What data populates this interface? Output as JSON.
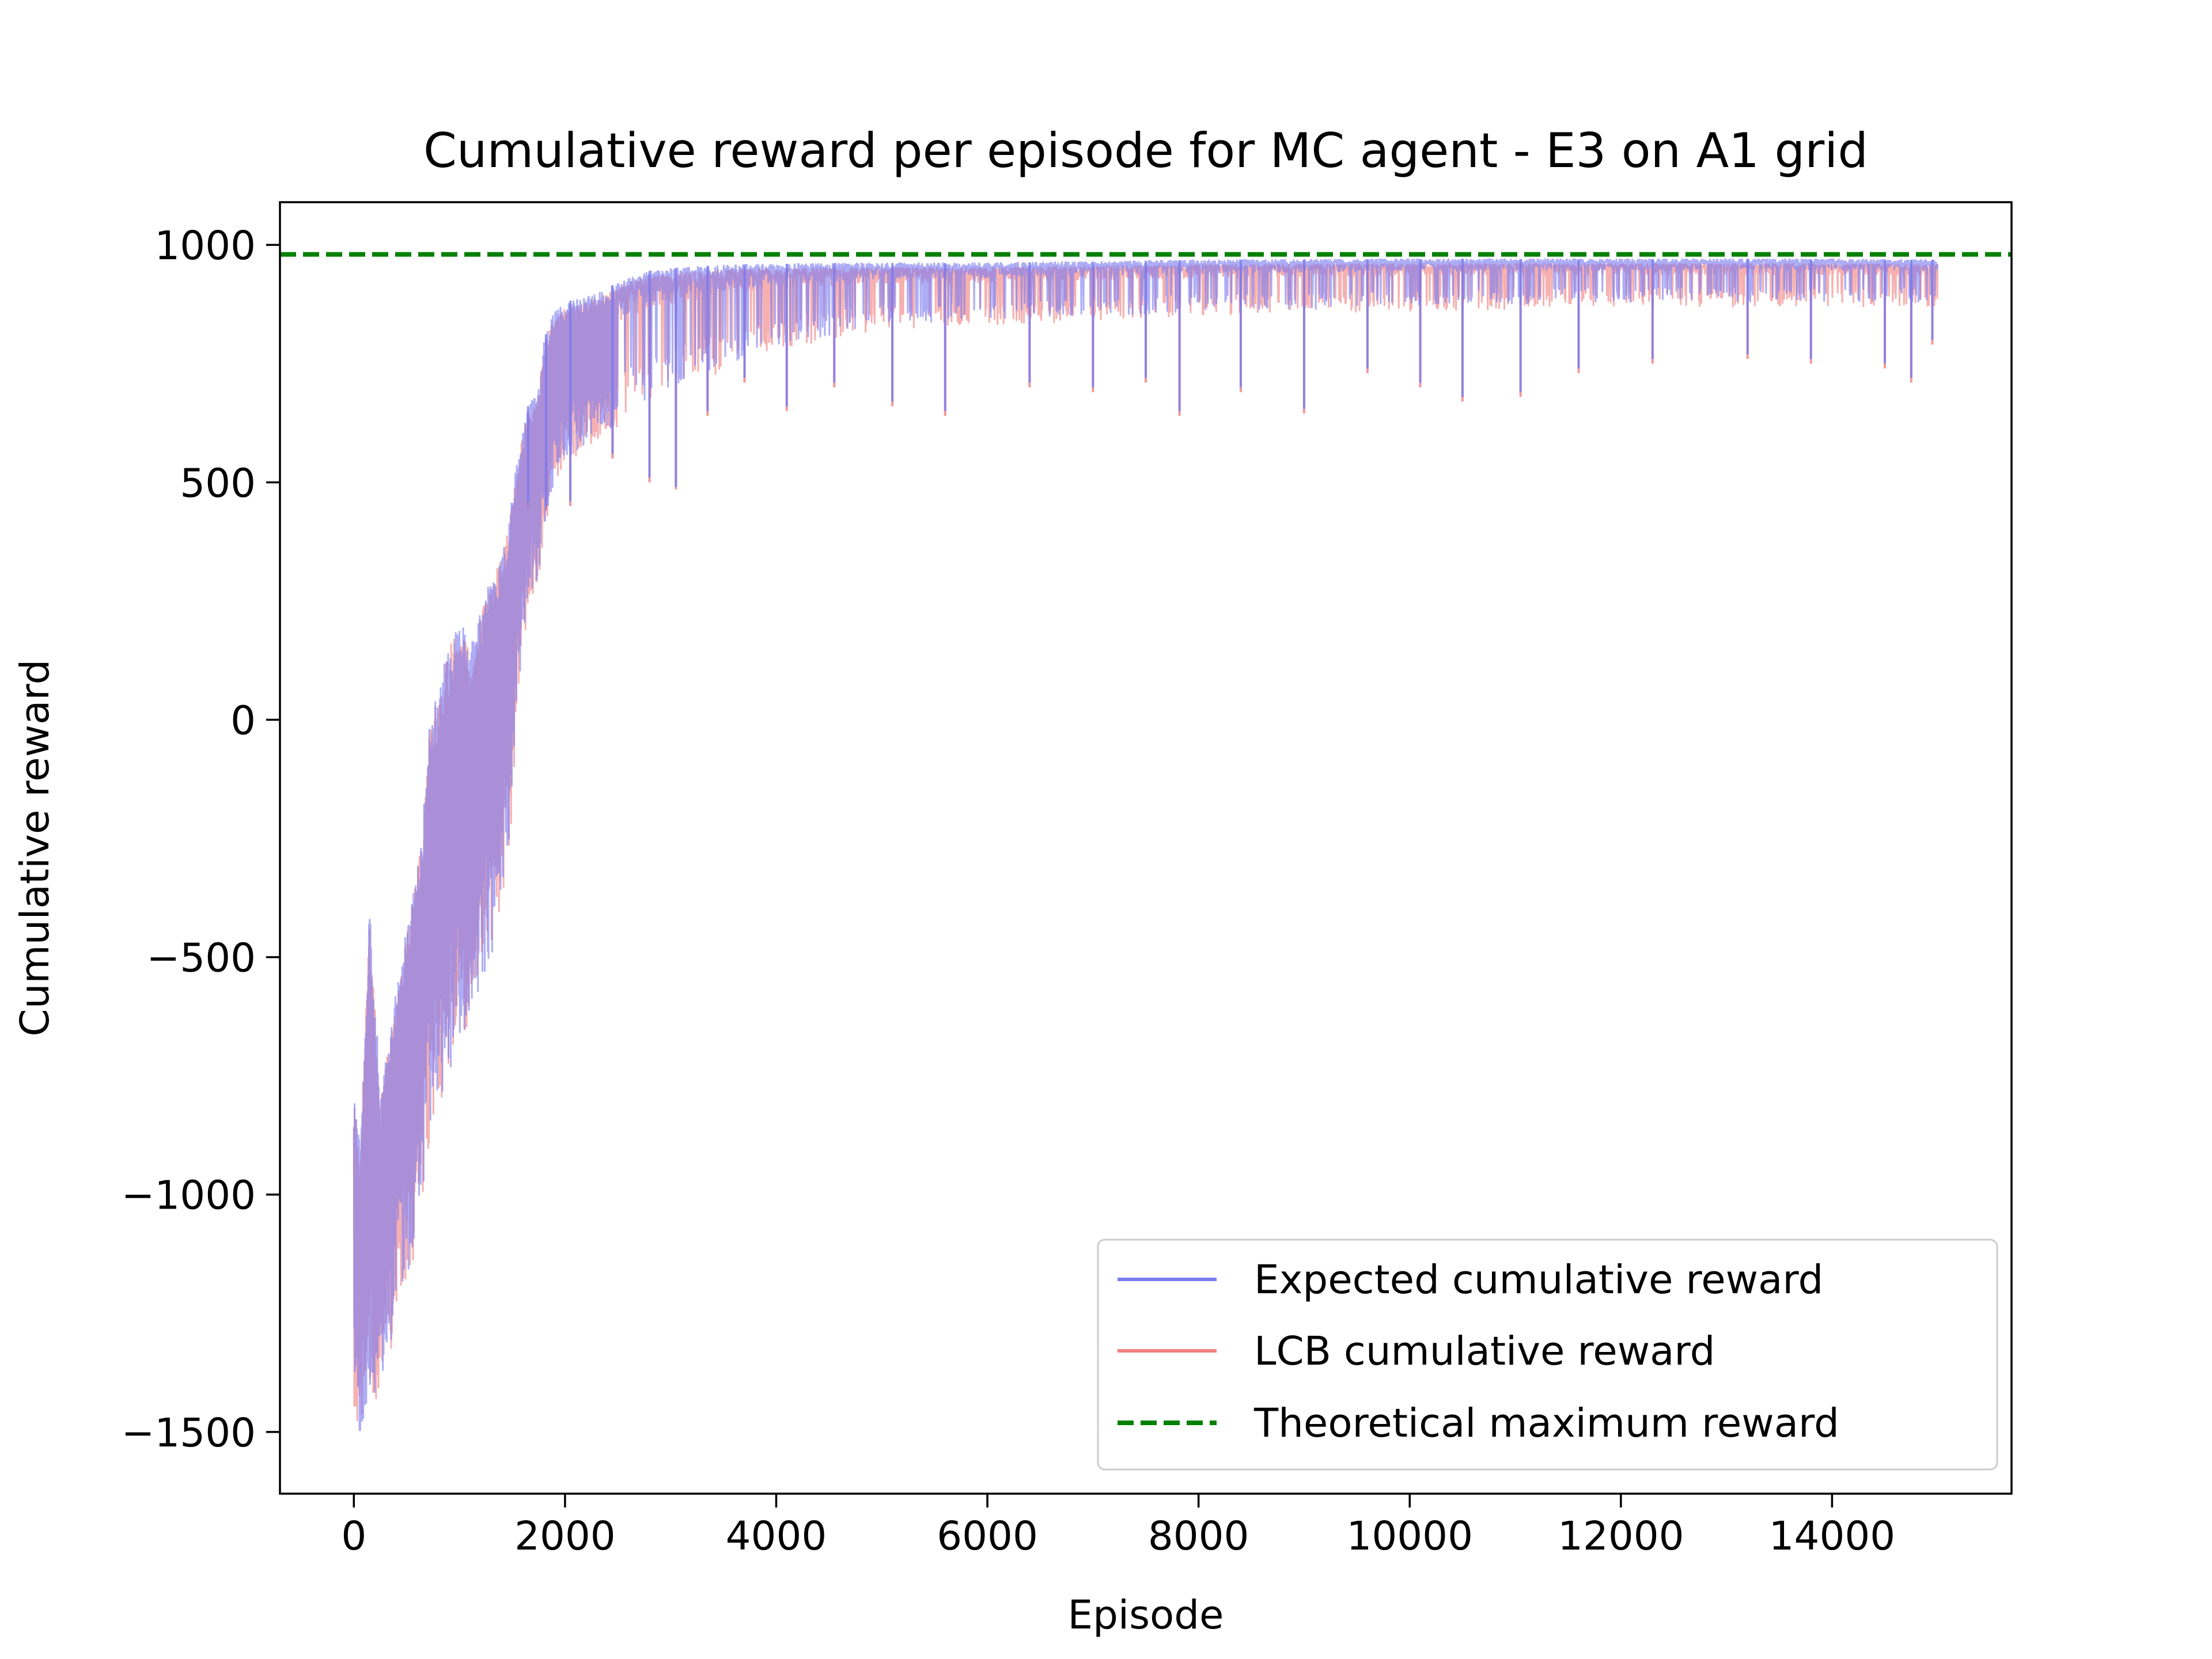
{
  "chart_data": {
    "type": "line",
    "title": "Cumulative reward per episode for MC agent - E3 on A1 grid",
    "xlabel": "Episode",
    "ylabel": "Cumulative reward",
    "xlim": [
      -700,
      15700
    ],
    "ylim": [
      -1630,
      1090
    ],
    "xticks": [
      0,
      2000,
      4000,
      6000,
      8000,
      10000,
      12000,
      14000
    ],
    "yticks": [
      -1500,
      -1000,
      -500,
      0,
      500,
      1000
    ],
    "grid": false,
    "legend_position": "lower-right",
    "series": [
      {
        "name": "Expected cumulative reward",
        "color": "#7b7bf0",
        "style": "solid",
        "upper_envelope": [
          [
            0,
            -780
          ],
          [
            60,
            -900
          ],
          [
            150,
            -380
          ],
          [
            250,
            -780
          ],
          [
            350,
            -640
          ],
          [
            450,
            -500
          ],
          [
            550,
            -380
          ],
          [
            650,
            -230
          ],
          [
            700,
            -20
          ],
          [
            800,
            60
          ],
          [
            900,
            160
          ],
          [
            1000,
            220
          ],
          [
            1100,
            150
          ],
          [
            1200,
            230
          ],
          [
            1300,
            300
          ],
          [
            1400,
            350
          ],
          [
            1500,
            470
          ],
          [
            1550,
            560
          ],
          [
            1650,
            660
          ],
          [
            1750,
            700
          ],
          [
            1800,
            800
          ],
          [
            1900,
            860
          ],
          [
            2000,
            880
          ],
          [
            2200,
            890
          ],
          [
            2400,
            910
          ],
          [
            2600,
            930
          ],
          [
            2800,
            945
          ],
          [
            3000,
            950
          ],
          [
            3500,
            958
          ],
          [
            4000,
            960
          ],
          [
            5000,
            962
          ],
          [
            6000,
            962
          ],
          [
            7000,
            965
          ],
          [
            8000,
            968
          ],
          [
            10000,
            970
          ],
          [
            12000,
            970
          ],
          [
            14000,
            970
          ],
          [
            15000,
            968
          ]
        ],
        "lower_envelope": [
          [
            0,
            -1470
          ],
          [
            60,
            -1500
          ],
          [
            150,
            -1420
          ],
          [
            250,
            -1420
          ],
          [
            350,
            -1320
          ],
          [
            450,
            -1220
          ],
          [
            550,
            -1150
          ],
          [
            650,
            -1000
          ],
          [
            700,
            -900
          ],
          [
            800,
            -820
          ],
          [
            900,
            -750
          ],
          [
            1000,
            -680
          ],
          [
            1100,
            -620
          ],
          [
            1200,
            -580
          ],
          [
            1300,
            -500
          ],
          [
            1400,
            -400
          ],
          [
            1500,
            -200
          ],
          [
            1550,
            50
          ],
          [
            1650,
            250
          ],
          [
            1750,
            300
          ],
          [
            1800,
            400
          ],
          [
            1900,
            500
          ],
          [
            2000,
            550
          ],
          [
            2200,
            580
          ],
          [
            2400,
            610
          ],
          [
            2600,
            640
          ],
          [
            2800,
            670
          ],
          [
            3000,
            700
          ],
          [
            3500,
            740
          ],
          [
            4000,
            790
          ],
          [
            5000,
            830
          ],
          [
            6000,
            840
          ],
          [
            7000,
            850
          ],
          [
            8000,
            860
          ],
          [
            10000,
            870
          ],
          [
            12000,
            880
          ],
          [
            14000,
            880
          ],
          [
            15000,
            880
          ]
        ],
        "dips": [
          [
            1650,
            460
          ],
          [
            1820,
            450
          ],
          [
            2050,
            460
          ],
          [
            2450,
            560
          ],
          [
            2800,
            510
          ],
          [
            3050,
            490
          ],
          [
            3350,
            650
          ],
          [
            3700,
            720
          ],
          [
            4100,
            660
          ],
          [
            4550,
            710
          ],
          [
            5100,
            670
          ],
          [
            5600,
            650
          ],
          [
            6400,
            710
          ],
          [
            7000,
            700
          ],
          [
            7500,
            720
          ],
          [
            7820,
            650
          ],
          [
            8400,
            700
          ],
          [
            9000,
            655
          ],
          [
            9600,
            740
          ],
          [
            10100,
            710
          ],
          [
            10500,
            680
          ],
          [
            11050,
            690
          ],
          [
            11600,
            740
          ],
          [
            12300,
            760
          ],
          [
            13200,
            770
          ],
          [
            13800,
            760
          ],
          [
            14500,
            750
          ],
          [
            14750,
            720
          ],
          [
            14950,
            800
          ]
        ]
      },
      {
        "name": "LCB cumulative reward",
        "color": "#f08080",
        "style": "solid",
        "upper_envelope": [
          [
            0,
            -790
          ],
          [
            60,
            -910
          ],
          [
            150,
            -390
          ],
          [
            250,
            -790
          ],
          [
            350,
            -650
          ],
          [
            450,
            -510
          ],
          [
            550,
            -390
          ],
          [
            650,
            -240
          ],
          [
            700,
            -30
          ],
          [
            800,
            50
          ],
          [
            900,
            150
          ],
          [
            1000,
            210
          ],
          [
            1100,
            140
          ],
          [
            1200,
            220
          ],
          [
            1300,
            290
          ],
          [
            1400,
            340
          ],
          [
            1500,
            460
          ],
          [
            1550,
            550
          ],
          [
            1650,
            650
          ],
          [
            1750,
            690
          ],
          [
            1800,
            790
          ],
          [
            1900,
            850
          ],
          [
            2000,
            870
          ],
          [
            2200,
            880
          ],
          [
            2400,
            900
          ],
          [
            2600,
            920
          ],
          [
            2800,
            935
          ],
          [
            3000,
            940
          ],
          [
            3500,
            948
          ],
          [
            4000,
            950
          ],
          [
            5000,
            952
          ],
          [
            6000,
            952
          ],
          [
            7000,
            955
          ],
          [
            8000,
            958
          ],
          [
            10000,
            960
          ],
          [
            12000,
            960
          ],
          [
            14000,
            960
          ],
          [
            15000,
            958
          ]
        ],
        "lower_envelope": [
          [
            0,
            -1480
          ],
          [
            60,
            -1510
          ],
          [
            150,
            -1430
          ],
          [
            250,
            -1430
          ],
          [
            350,
            -1330
          ],
          [
            450,
            -1230
          ],
          [
            550,
            -1160
          ],
          [
            650,
            -1010
          ],
          [
            700,
            -910
          ],
          [
            800,
            -830
          ],
          [
            900,
            -760
          ],
          [
            1000,
            -690
          ],
          [
            1100,
            -630
          ],
          [
            1200,
            -590
          ],
          [
            1300,
            -510
          ],
          [
            1400,
            -410
          ],
          [
            1500,
            -210
          ],
          [
            1550,
            40
          ],
          [
            1650,
            240
          ],
          [
            1750,
            290
          ],
          [
            1800,
            390
          ],
          [
            1900,
            490
          ],
          [
            2000,
            540
          ],
          [
            2200,
            570
          ],
          [
            2400,
            600
          ],
          [
            2600,
            630
          ],
          [
            2800,
            660
          ],
          [
            3000,
            690
          ],
          [
            3500,
            730
          ],
          [
            4000,
            780
          ],
          [
            5000,
            820
          ],
          [
            6000,
            830
          ],
          [
            7000,
            840
          ],
          [
            8000,
            850
          ],
          [
            10000,
            860
          ],
          [
            12000,
            870
          ],
          [
            14000,
            870
          ],
          [
            15000,
            870
          ]
        ],
        "dips": [
          [
            1650,
            445
          ],
          [
            1820,
            440
          ],
          [
            2050,
            450
          ],
          [
            2450,
            550
          ],
          [
            2800,
            500
          ],
          [
            3050,
            485
          ],
          [
            3350,
            640
          ],
          [
            3700,
            710
          ],
          [
            4100,
            650
          ],
          [
            4550,
            700
          ],
          [
            5100,
            660
          ],
          [
            5600,
            640
          ],
          [
            6400,
            700
          ],
          [
            7000,
            690
          ],
          [
            7500,
            710
          ],
          [
            7820,
            640
          ],
          [
            8400,
            690
          ],
          [
            9000,
            645
          ],
          [
            9600,
            730
          ],
          [
            10100,
            700
          ],
          [
            10500,
            670
          ],
          [
            11050,
            680
          ],
          [
            11600,
            730
          ],
          [
            12300,
            750
          ],
          [
            13200,
            760
          ],
          [
            13800,
            750
          ],
          [
            14500,
            740
          ],
          [
            14750,
            710
          ],
          [
            14950,
            790
          ]
        ]
      },
      {
        "name": "Theoretical maximum reward",
        "color": "#008000",
        "style": "dashed",
        "value": 980
      }
    ]
  }
}
